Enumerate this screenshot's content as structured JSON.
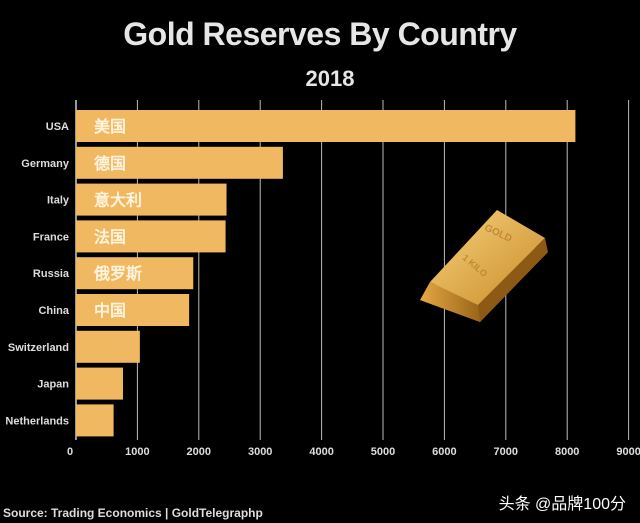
{
  "chart_data": {
    "type": "bar",
    "orientation": "horizontal",
    "title": "Gold Reserves By Country",
    "subtitle": "2018",
    "categories": [
      "USA",
      "Germany",
      "Italy",
      "France",
      "Russia",
      "China",
      "Switzerland",
      "Japan",
      "Netherlands"
    ],
    "bar_labels": [
      "美国",
      "德国",
      "意大利",
      "法国",
      "俄罗斯",
      "中国",
      "",
      "",
      ""
    ],
    "values": [
      8133.5,
      3369.7,
      2451.8,
      2436.0,
      1909.8,
      1842.6,
      1040.0,
      765.2,
      612.5
    ],
    "xlim": [
      0,
      9000
    ],
    "xticks": [
      "0",
      "1000",
      "2000",
      "3000",
      "4000",
      "5000",
      "6000",
      "7000",
      "8000",
      "9000"
    ],
    "grid": true,
    "bar_color": "#f0b860",
    "background": "#000000",
    "illustration": {
      "icon": "gold-bar-icon",
      "lettering": [
        "GOLD",
        "1 KILO"
      ]
    }
  },
  "footer": {
    "source": "Source: Trading Economics | GoldTelegraphp",
    "watermark": "头条 @品牌100分"
  }
}
